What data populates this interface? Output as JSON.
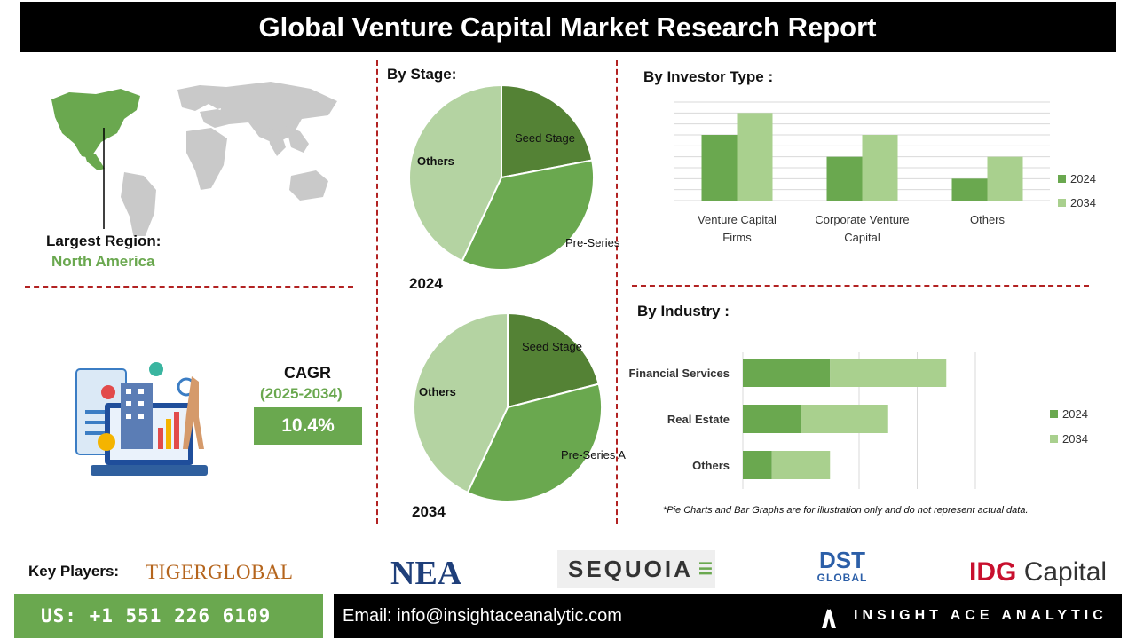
{
  "header": {
    "title": "Global Venture Capital Market Research Report"
  },
  "region": {
    "label": "Largest Region:",
    "value": "North America"
  },
  "cagr": {
    "label": "CAGR",
    "range": "(2025-2034)",
    "value": "10.4%"
  },
  "sections": {
    "stage": "By Stage:",
    "investor": "By Investor Type  :",
    "industry": "By Industry :"
  },
  "colors": {
    "dark_green": "#548235",
    "mid_green": "#6aa84f",
    "light_green": "#a9d08e",
    "pale_green": "#b4d3a2",
    "red_dash": "#b22222"
  },
  "chart_data": [
    {
      "type": "pie",
      "year_label": "2024",
      "categories": [
        "Seed Stage",
        "Pre-Series A",
        "Others"
      ],
      "values": [
        22,
        35,
        43
      ]
    },
    {
      "type": "pie",
      "year_label": "2034",
      "categories": [
        "Seed Stage",
        "Pre-Series A",
        "Others"
      ],
      "values": [
        21,
        36,
        43
      ]
    },
    {
      "type": "bar",
      "categories": [
        "Venture Capital Firms",
        "Corporate Venture Capital",
        "Others"
      ],
      "series": [
        {
          "name": "2024",
          "values": [
            3,
            2,
            1
          ]
        },
        {
          "name": "2034",
          "values": [
            4,
            3,
            2
          ]
        }
      ],
      "ylim": [
        0,
        4.5
      ],
      "grid": true,
      "legend": "right"
    },
    {
      "type": "bar",
      "orientation": "horizontal",
      "categories": [
        "Financial Services",
        "Real Estate",
        "Others"
      ],
      "series": [
        {
          "name": "2024",
          "values": [
            1.5,
            1.0,
            0.5
          ]
        },
        {
          "name": "2034",
          "values": [
            2.0,
            1.5,
            1.0
          ]
        }
      ],
      "xlim": [
        0,
        4.5
      ],
      "stacked": true,
      "grid": true,
      "legend": "right"
    }
  ],
  "note": "*Pie Charts and Bar Graphs are for illustration only and do not represent actual data.",
  "footer": {
    "key_players_label": "Key Players:",
    "players": [
      "TIGERGLOBAL",
      "NEA",
      "SEQUOIA",
      "DST",
      "GLOBAL",
      "IDG",
      "Capital"
    ],
    "phone": "US: +1 551 226 6109",
    "email": "Email: info@insightaceanalytic.com",
    "brand": "INSIGHT ACE ANALYTIC"
  }
}
